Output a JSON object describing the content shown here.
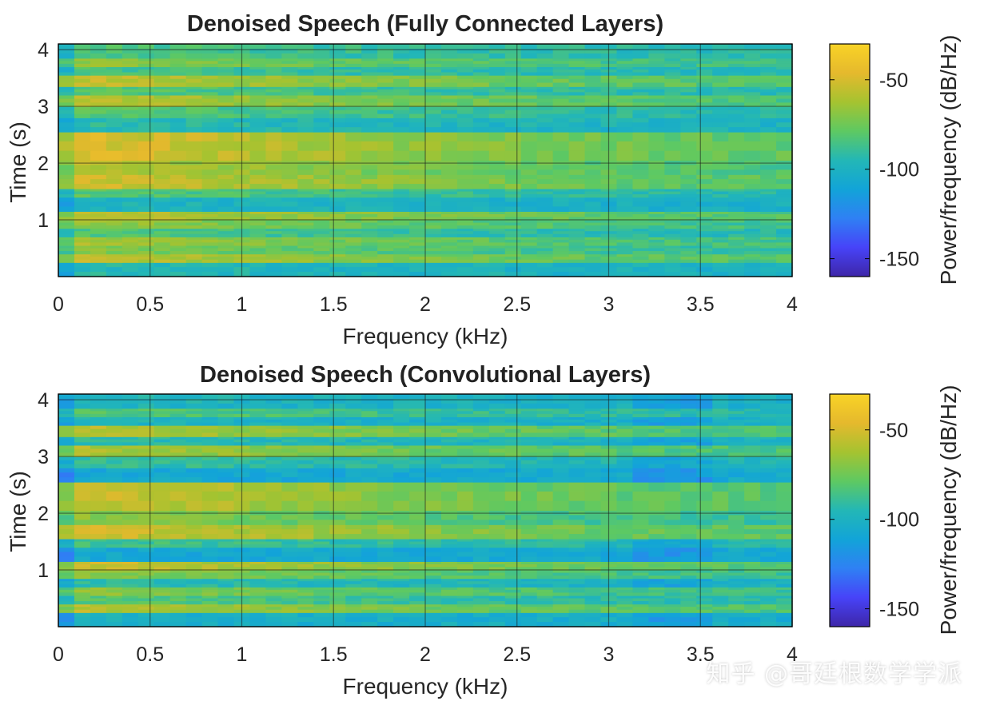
{
  "colors": {
    "cmap": [
      "#3e26a8",
      "#4743f8",
      "#2f80f4",
      "#12a4d8",
      "#23b7b6",
      "#5ec962",
      "#a5c330",
      "#e5b92d",
      "#f9d326"
    ],
    "frame": "#000000",
    "grid": "#1a1a1a",
    "text": "#262626"
  },
  "watermark": "知乎 @哥廷根数学学派",
  "chart_data": [
    {
      "type": "heatmap",
      "title": "Denoised Speech (Fully Connected Layers)",
      "xlabel": "Frequency (kHz)",
      "ylabel": "Time (s)",
      "xlim": [
        0,
        4
      ],
      "ylim": [
        0,
        4.1
      ],
      "xticks": [
        "0",
        "0.5",
        "1",
        "1.5",
        "2",
        "2.5",
        "3",
        "3.5",
        "4"
      ],
      "yticks": [
        "1",
        "2",
        "3",
        "4"
      ],
      "grid": true,
      "colorbar": {
        "label": "Power/frequency (dB/Hz)",
        "range": [
          -160,
          -30
        ],
        "ticks": [
          "-50",
          "-100",
          "-150"
        ]
      },
      "bands": [
        {
          "t0": 0.0,
          "t1": 0.25,
          "level": 0.5
        },
        {
          "t0": 0.25,
          "t1": 0.4,
          "level": 0.82
        },
        {
          "t0": 0.4,
          "t1": 0.55,
          "level": 0.7
        },
        {
          "t0": 0.55,
          "t1": 0.7,
          "level": 0.76
        },
        {
          "t0": 0.7,
          "t1": 0.85,
          "level": 0.6
        },
        {
          "t0": 0.85,
          "t1": 1.0,
          "level": 0.74
        },
        {
          "t0": 1.0,
          "t1": 1.15,
          "level": 0.82
        },
        {
          "t0": 1.15,
          "t1": 1.4,
          "level": 0.48
        },
        {
          "t0": 1.4,
          "t1": 1.55,
          "level": 0.62
        },
        {
          "t0": 1.55,
          "t1": 1.8,
          "level": 0.85
        },
        {
          "t0": 1.8,
          "t1": 2.05,
          "level": 0.8
        },
        {
          "t0": 2.05,
          "t1": 2.55,
          "level": 0.88
        },
        {
          "t0": 2.55,
          "t1": 2.8,
          "level": 0.52
        },
        {
          "t0": 2.8,
          "t1": 3.0,
          "level": 0.62
        },
        {
          "t0": 3.0,
          "t1": 3.2,
          "level": 0.8
        },
        {
          "t0": 3.2,
          "t1": 3.35,
          "level": 0.62
        },
        {
          "t0": 3.35,
          "t1": 3.55,
          "level": 0.82
        },
        {
          "t0": 3.55,
          "t1": 3.7,
          "level": 0.58
        },
        {
          "t0": 3.7,
          "t1": 3.85,
          "level": 0.72
        },
        {
          "t0": 3.85,
          "t1": 4.1,
          "level": 0.6
        }
      ]
    },
    {
      "type": "heatmap",
      "title": "Denoised Speech (Convolutional Layers)",
      "xlabel": "Frequency (kHz)",
      "ylabel": "Time (s)",
      "xlim": [
        0,
        4
      ],
      "ylim": [
        0,
        4.1
      ],
      "xticks": [
        "0",
        "0.5",
        "1",
        "1.5",
        "2",
        "2.5",
        "3",
        "3.5",
        "4"
      ],
      "yticks": [
        "1",
        "2",
        "3",
        "4"
      ],
      "grid": true,
      "colorbar": {
        "label": "Power/frequency (dB/Hz)",
        "range": [
          -160,
          -30
        ],
        "ticks": [
          "-50",
          "-100",
          "-150"
        ]
      },
      "bands": [
        {
          "t0": 0.0,
          "t1": 0.25,
          "level": 0.45
        },
        {
          "t0": 0.25,
          "t1": 0.4,
          "level": 0.8
        },
        {
          "t0": 0.4,
          "t1": 0.55,
          "level": 0.62
        },
        {
          "t0": 0.55,
          "t1": 0.7,
          "level": 0.72
        },
        {
          "t0": 0.7,
          "t1": 0.85,
          "level": 0.52
        },
        {
          "t0": 0.85,
          "t1": 1.0,
          "level": 0.72
        },
        {
          "t0": 1.0,
          "t1": 1.15,
          "level": 0.84
        },
        {
          "t0": 1.15,
          "t1": 1.4,
          "level": 0.4
        },
        {
          "t0": 1.4,
          "t1": 1.55,
          "level": 0.58
        },
        {
          "t0": 1.55,
          "t1": 1.8,
          "level": 0.86
        },
        {
          "t0": 1.8,
          "t1": 2.05,
          "level": 0.72
        },
        {
          "t0": 2.05,
          "t1": 2.55,
          "level": 0.84
        },
        {
          "t0": 2.55,
          "t1": 2.8,
          "level": 0.4
        },
        {
          "t0": 2.8,
          "t1": 3.0,
          "level": 0.55
        },
        {
          "t0": 3.0,
          "t1": 3.2,
          "level": 0.78
        },
        {
          "t0": 3.2,
          "t1": 3.35,
          "level": 0.52
        },
        {
          "t0": 3.35,
          "t1": 3.55,
          "level": 0.8
        },
        {
          "t0": 3.55,
          "t1": 3.7,
          "level": 0.48
        },
        {
          "t0": 3.7,
          "t1": 3.85,
          "level": 0.62
        },
        {
          "t0": 3.85,
          "t1": 4.1,
          "level": 0.48
        }
      ]
    }
  ]
}
